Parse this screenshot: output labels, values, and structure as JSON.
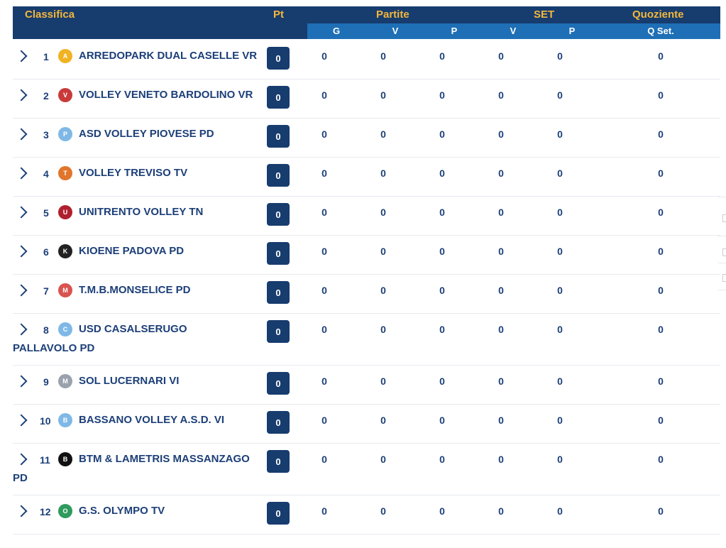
{
  "header": {
    "classifica": "Classifica",
    "pt": "Pt",
    "partite": "Partite",
    "set": "SET",
    "quoziente": "Quoziente",
    "g": "G",
    "pv": "V",
    "pp": "P",
    "sv": "V",
    "sp": "P",
    "qset": "Q Set."
  },
  "rows": [
    {
      "pos": "1",
      "team": "ARREDOPARK DUAL CASELLE VR",
      "team2": "",
      "pt": "0",
      "g": "0",
      "v": "0",
      "p": "0",
      "sv": "0",
      "sp": "0",
      "q": "0",
      "logo_color": "#f0b323",
      "logo_text": "A"
    },
    {
      "pos": "2",
      "team": "VOLLEY VENETO BARDOLINO VR",
      "team2": "",
      "pt": "0",
      "g": "0",
      "v": "0",
      "p": "0",
      "sv": "0",
      "sp": "0",
      "q": "0",
      "logo_color": "#c93a3a",
      "logo_text": "V"
    },
    {
      "pos": "3",
      "team": "ASD VOLLEY PIOVESE PD",
      "team2": "",
      "pt": "0",
      "g": "0",
      "v": "0",
      "p": "0",
      "sv": "0",
      "sp": "0",
      "q": "0",
      "logo_color": "#7fb8e6",
      "logo_text": "P"
    },
    {
      "pos": "4",
      "team": "VOLLEY TREVISO TV",
      "team2": "",
      "pt": "0",
      "g": "0",
      "v": "0",
      "p": "0",
      "sv": "0",
      "sp": "0",
      "q": "0",
      "logo_color": "#e0752b",
      "logo_text": "T"
    },
    {
      "pos": "5",
      "team": "UNITRENTO VOLLEY TN",
      "team2": "",
      "pt": "0",
      "g": "0",
      "v": "0",
      "p": "0",
      "sv": "0",
      "sp": "0",
      "q": "0",
      "logo_color": "#b01f2e",
      "logo_text": "U"
    },
    {
      "pos": "6",
      "team": "KIOENE PADOVA PD",
      "team2": "",
      "pt": "0",
      "g": "0",
      "v": "0",
      "p": "0",
      "sv": "0",
      "sp": "0",
      "q": "0",
      "logo_color": "#222222",
      "logo_text": "K"
    },
    {
      "pos": "7",
      "team": "T.M.B.MONSELICE PD",
      "team2": "",
      "pt": "0",
      "g": "0",
      "v": "0",
      "p": "0",
      "sv": "0",
      "sp": "0",
      "q": "0",
      "logo_color": "#d9534f",
      "logo_text": "M"
    },
    {
      "pos": "8",
      "team": "USD CASALSERUGO",
      "team2": "PALLAVOLO PD",
      "pt": "0",
      "g": "0",
      "v": "0",
      "p": "0",
      "sv": "0",
      "sp": "0",
      "q": "0",
      "logo_color": "#7fb8e6",
      "logo_text": "C"
    },
    {
      "pos": "9",
      "team": "SOL LUCERNARI VI",
      "team2": "",
      "pt": "0",
      "g": "0",
      "v": "0",
      "p": "0",
      "sv": "0",
      "sp": "0",
      "q": "0",
      "logo_color": "#9aa3ad",
      "logo_text": "M"
    },
    {
      "pos": "10",
      "team": "BASSANO VOLLEY A.S.D. VI",
      "team2": "",
      "pt": "0",
      "g": "0",
      "v": "0",
      "p": "0",
      "sv": "0",
      "sp": "0",
      "q": "0",
      "logo_color": "#7fb8e6",
      "logo_text": "B"
    },
    {
      "pos": "11",
      "team": "BTM & LAMETRIS MASSANZAGO",
      "team2": "PD",
      "pt": "0",
      "g": "0",
      "v": "0",
      "p": "0",
      "sv": "0",
      "sp": "0",
      "q": "0",
      "logo_color": "#111111",
      "logo_text": "B"
    },
    {
      "pos": "12",
      "team": "G.S. OLYMPO TV",
      "team2": "",
      "pt": "0",
      "g": "0",
      "v": "0",
      "p": "0",
      "sv": "0",
      "sp": "0",
      "q": "0",
      "logo_color": "#2e9b5d",
      "logo_text": "O"
    }
  ],
  "colors": {
    "header_bg": "#173c6e",
    "subheader_band": "#1e6fb6",
    "header_text": "#f3b73b",
    "text": "#1c3f78"
  }
}
